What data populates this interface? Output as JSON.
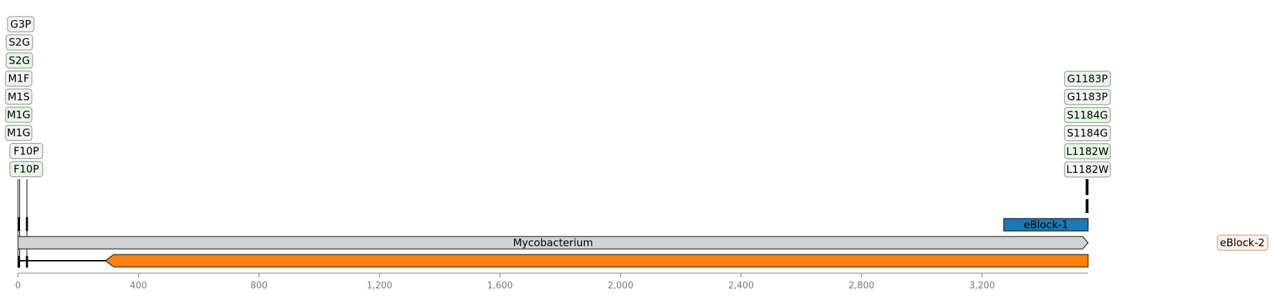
{
  "colors": {
    "box_green": "#e6f5e4",
    "box_gray": "#f2f2f2",
    "box_peach": "#fdf0e6",
    "gene_fill": "#d3d3d3",
    "eblock1_fill": "#1f77b4",
    "orange_fill": "#ff7f0e",
    "axis": "#777777",
    "stroke": "#000000"
  },
  "left_mutations": [
    {
      "label": "G3P",
      "pos": 3,
      "style": "gray"
    },
    {
      "label": "S2G",
      "pos": 2,
      "style": "gray"
    },
    {
      "label": "S2G",
      "pos": 2,
      "style": "green"
    },
    {
      "label": "M1F",
      "pos": 1,
      "style": "gray"
    },
    {
      "label": "M1S",
      "pos": 1,
      "style": "gray"
    },
    {
      "label": "M1G",
      "pos": 1,
      "style": "green"
    },
    {
      "label": "M1G",
      "pos": 1,
      "style": "gray"
    },
    {
      "label": "F10P",
      "pos": 30,
      "style": "gray"
    },
    {
      "label": "F10P",
      "pos": 30,
      "style": "green"
    }
  ],
  "right_mutations": [
    {
      "label": "G1183P",
      "pos": 3549,
      "style": "green"
    },
    {
      "label": "G1183P",
      "pos": 3549,
      "style": "gray"
    },
    {
      "label": "S1184G",
      "pos": 3552,
      "style": "green"
    },
    {
      "label": "S1184G",
      "pos": 3552,
      "style": "gray"
    },
    {
      "label": "L1182W",
      "pos": 3546,
      "style": "green"
    },
    {
      "label": "L1182W",
      "pos": 3546,
      "style": "gray"
    }
  ],
  "features": {
    "gene": {
      "label": "Mycobacterium",
      "start": 0,
      "end": 3552
    },
    "eblock1": {
      "label": "eBlock-1",
      "start": 3272,
      "end": 3552
    },
    "eblock2": {
      "label": "eBlock-2"
    },
    "orange": {
      "start": 290,
      "end": 3552
    }
  },
  "axis": {
    "min": 0,
    "max": 3552,
    "ticks": [
      0,
      400,
      800,
      1200,
      1600,
      2000,
      2400,
      2800,
      3200
    ],
    "tick_labels": [
      "0",
      "400",
      "800",
      "1,200",
      "1,600",
      "2,000",
      "2,400",
      "2,800",
      "3,200"
    ]
  }
}
